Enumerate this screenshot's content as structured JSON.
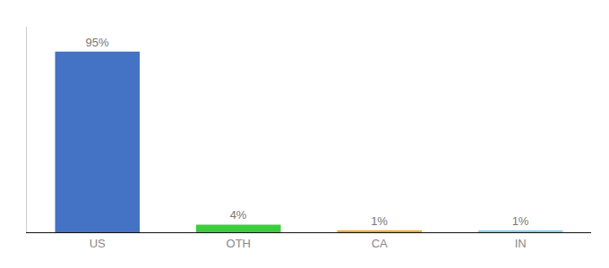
{
  "chart_data": {
    "type": "bar",
    "categories": [
      "US",
      "OTH",
      "CA",
      "IN"
    ],
    "values": [
      95,
      4,
      1,
      1
    ],
    "value_labels": [
      "95%",
      "4%",
      "1%",
      "1%"
    ],
    "colors": [
      "#4472c4",
      "#3dcc3d",
      "#f0a830",
      "#87ceeb"
    ],
    "ylim": [
      0,
      108
    ],
    "data_labels": true,
    "tick_labels": "x",
    "grid": false
  }
}
